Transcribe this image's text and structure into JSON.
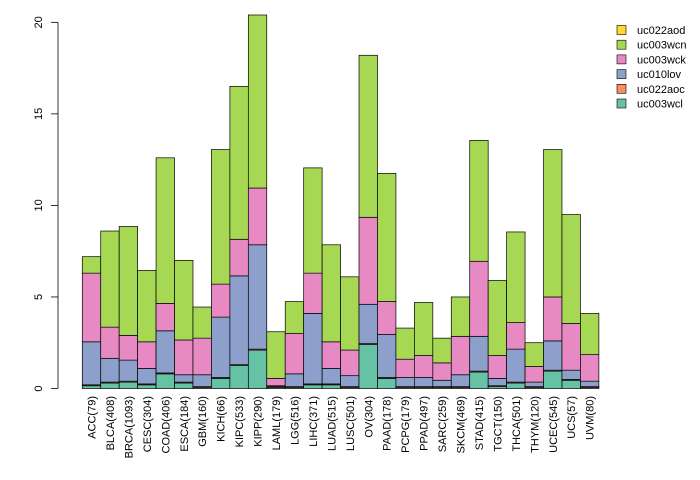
{
  "chart_data": {
    "type": "bar",
    "stacked": true,
    "title": "",
    "xlabel": "",
    "ylabel": "",
    "ylim": [
      0,
      20.4
    ],
    "yticks": [
      0,
      5,
      10,
      15,
      20
    ],
    "grid": false,
    "legend_position": "top-right",
    "categories": [
      "ACC(79)",
      "BLCA(408)",
      "BRCA(1093)",
      "CESC(304)",
      "COAD(406)",
      "ESCA(184)",
      "GBM(160)",
      "KICH(66)",
      "KIPC(533)",
      "KIPP(290)",
      "LAML(179)",
      "LGG(516)",
      "LIHC(371)",
      "LUAD(515)",
      "LUSC(501)",
      "OV(304)",
      "PAAD(178)",
      "PCPG(179)",
      "PPAD(497)",
      "SARC(259)",
      "SKCM(469)",
      "STAD(415)",
      "TGCT(150)",
      "THCA(501)",
      "THYM(120)",
      "UCEC(545)",
      "UCS(57)",
      "UVM(80)"
    ],
    "series": [
      {
        "name": "uc003wcl",
        "color": "#66c2a5",
        "values": [
          0.15,
          0.3,
          0.35,
          0.2,
          0.8,
          0.3,
          0.05,
          0.55,
          1.25,
          2.1,
          0.05,
          0.05,
          0.2,
          0.2,
          0.05,
          2.4,
          0.55,
          0.05,
          0.05,
          0.05,
          0.05,
          0.9,
          0.1,
          0.3,
          0.05,
          0.95,
          0.45,
          0.05
        ]
      },
      {
        "name": "uc022aoc",
        "color": "#fc8d62",
        "values": [
          0.05,
          0.05,
          0.05,
          0.05,
          0.05,
          0.05,
          0.05,
          0.05,
          0.05,
          0.05,
          0.05,
          0.05,
          0.05,
          0.05,
          0.05,
          0.05,
          0.05,
          0.05,
          0.05,
          0.05,
          0.05,
          0.05,
          0.05,
          0.05,
          0.05,
          0.05,
          0.05,
          0.05
        ]
      },
      {
        "name": "uc010lov",
        "color": "#8da0cb",
        "values": [
          2.35,
          1.3,
          1.15,
          0.85,
          2.3,
          0.4,
          0.65,
          3.3,
          4.85,
          5.7,
          0.05,
          0.7,
          3.85,
          0.85,
          0.6,
          2.15,
          2.35,
          0.5,
          0.5,
          0.35,
          0.65,
          1.9,
          0.4,
          1.8,
          0.25,
          1.6,
          0.5,
          0.3
        ]
      },
      {
        "name": "uc003wck",
        "color": "#e78ac3",
        "values": [
          3.75,
          1.7,
          1.35,
          1.45,
          1.5,
          1.9,
          2.0,
          1.8,
          2.0,
          3.1,
          0.4,
          2.2,
          2.2,
          1.45,
          1.4,
          4.75,
          1.8,
          1.0,
          1.2,
          0.95,
          2.1,
          4.1,
          1.25,
          1.45,
          0.85,
          2.4,
          2.55,
          1.45
        ]
      },
      {
        "name": "uc003wcn",
        "color": "#a6d854",
        "values": [
          0.9,
          5.25,
          5.95,
          3.9,
          7.95,
          4.35,
          1.7,
          7.35,
          8.35,
          9.45,
          2.55,
          1.75,
          5.75,
          5.3,
          4.0,
          8.85,
          7.0,
          1.7,
          2.9,
          1.35,
          2.15,
          6.6,
          4.1,
          4.95,
          1.3,
          8.05,
          5.95,
          2.25
        ]
      },
      {
        "name": "uc022aod",
        "color": "#ffd92f",
        "values": [
          0,
          0,
          0,
          0,
          0,
          0,
          0,
          0,
          0,
          0,
          0,
          0,
          0,
          0,
          0,
          0,
          0,
          0,
          0,
          0,
          0,
          0,
          0,
          0,
          0,
          0,
          0,
          0
        ]
      }
    ]
  }
}
